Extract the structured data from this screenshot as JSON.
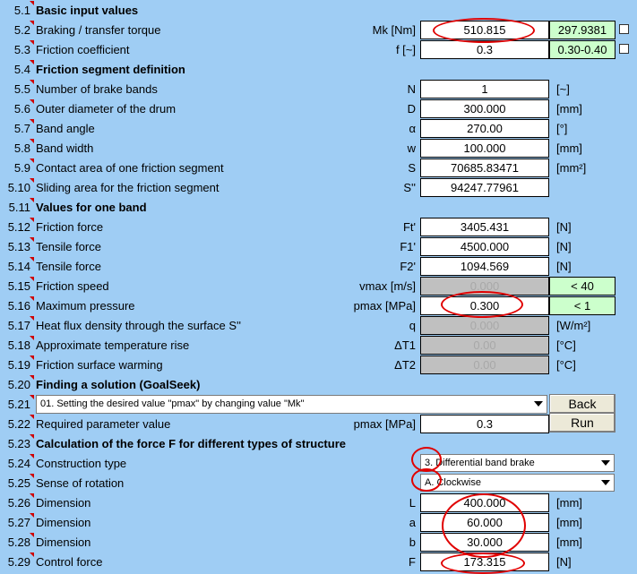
{
  "rows": {
    "r1": {
      "num": "5.1",
      "label": "Basic input values"
    },
    "r2": {
      "num": "5.2",
      "label": "Braking / transfer torque",
      "unit": "Mk [Nm]",
      "value": "510.815",
      "green": "297.9381"
    },
    "r3": {
      "num": "5.3",
      "label": "Friction coefficient",
      "unit": "f [~]",
      "value": "0.3",
      "green": "0.30-0.40"
    },
    "r4": {
      "num": "5.4",
      "label": "Friction segment definition"
    },
    "r5": {
      "num": "5.5",
      "label": "Number of brake bands",
      "unit": "N",
      "value": "1",
      "u2": "[~]"
    },
    "r6": {
      "num": "5.6",
      "label": "Outer diameter of the drum",
      "unit": "D",
      "value": "300.000",
      "u2": "[mm]"
    },
    "r7": {
      "num": "5.7",
      "label": "Band angle",
      "unit": "α",
      "value": "270.00",
      "u2": "[°]"
    },
    "r8": {
      "num": "5.8",
      "label": "Band width",
      "unit": "w",
      "value": "100.000",
      "u2": "[mm]"
    },
    "r9": {
      "num": "5.9",
      "label": "Contact area of one friction segment",
      "unit": "S",
      "value": "70685.83471",
      "u2": "[mm²]"
    },
    "r10": {
      "num": "5.10",
      "label": "Sliding area for the friction segment",
      "unit": "S''",
      "value": "94247.77961"
    },
    "r11": {
      "num": "5.11",
      "label": "Values for one band"
    },
    "r12": {
      "num": "5.12",
      "label": "Friction force",
      "unit": "Ft'",
      "value": "3405.431",
      "u2": "[N]"
    },
    "r13": {
      "num": "5.13",
      "label": "Tensile force",
      "unit": "F1'",
      "value": "4500.000",
      "u2": "[N]"
    },
    "r14": {
      "num": "5.14",
      "label": "Tensile force",
      "unit": "F2'",
      "value": "1094.569",
      "u2": "[N]"
    },
    "r15": {
      "num": "5.15",
      "label": "Friction speed",
      "unit": "vmax [m/s]",
      "value": "0.000",
      "green": "< 40"
    },
    "r16": {
      "num": "5.16",
      "label": "Maximum pressure",
      "unit": "pmax [MPa]",
      "value": "0.300",
      "green": "< 1"
    },
    "r17": {
      "num": "5.17",
      "label": "Heat flux density through the surface S''",
      "unit": "q",
      "value": "0.000",
      "u2": "[W/m²]"
    },
    "r18": {
      "num": "5.18",
      "label": "Approximate temperature rise",
      "unit": "ΔT1",
      "value": "0.00",
      "u2": "[°C]"
    },
    "r19": {
      "num": "5.19",
      "label": "Friction surface warming",
      "unit": "ΔT2",
      "value": "0.00",
      "u2": "[°C]"
    },
    "r20": {
      "num": "5.20",
      "label": "Finding a solution (GoalSeek)"
    },
    "r21": {
      "num": "5.21",
      "combo": "01. Setting the desired value \"pmax\" by changing value \"Mk\"",
      "button": "Back"
    },
    "r22": {
      "num": "5.22",
      "label": "Required parameter value",
      "unit": "pmax [MPa]",
      "value": "0.3",
      "button": "Run"
    },
    "r23": {
      "num": "5.23",
      "label": "Calculation of the force F for different types of structure"
    },
    "r24": {
      "num": "5.24",
      "label": "Construction type",
      "combo": "3. Differential band brake"
    },
    "r25": {
      "num": "5.25",
      "label": "Sense of rotation",
      "combo": "A. Clockwise"
    },
    "r26": {
      "num": "5.26",
      "label": "Dimension",
      "unit": "L",
      "value": "400.000",
      "u2": "[mm]"
    },
    "r27": {
      "num": "5.27",
      "label": "Dimension",
      "unit": "a",
      "value": "60.000",
      "u2": "[mm]"
    },
    "r28": {
      "num": "5.28",
      "label": "Dimension",
      "unit": "b",
      "value": "30.000",
      "u2": "[mm]"
    },
    "r29": {
      "num": "5.29",
      "label": "Control force",
      "unit": "F",
      "value": "173.315",
      "u2": "[N]"
    }
  },
  "colors": {
    "background": "#9fcdf4",
    "green_cell": "#ccffcc",
    "gray_cell": "#c0c0c0",
    "annotation": "#e00000"
  }
}
